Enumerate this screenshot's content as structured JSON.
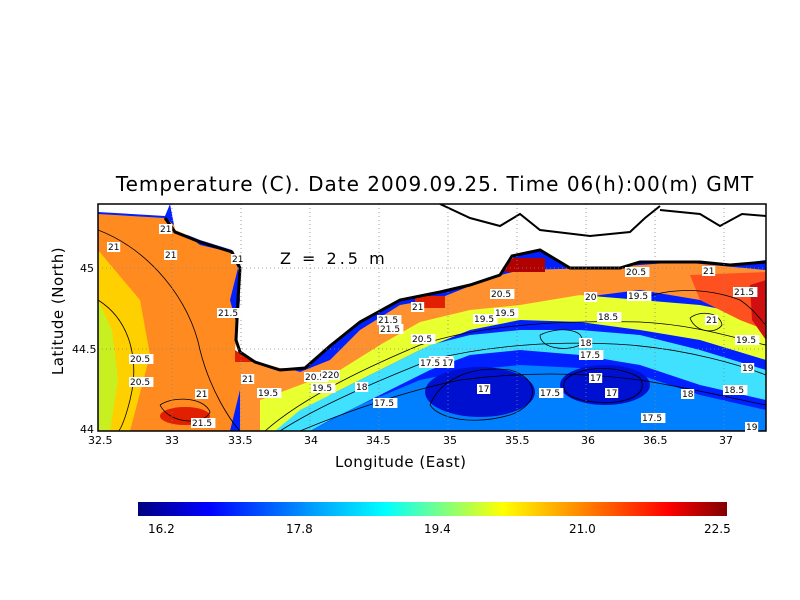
{
  "title": "Temperature (C). Date 2009.09.25. Time 06(h):00(m) GMT",
  "depth_label": "Z = 2.5 m",
  "xlabel": "Longitude (East)",
  "ylabel": "Latitude (North)",
  "x_ticks": [
    "32.5",
    "33",
    "33.5",
    "34",
    "34.5",
    "35",
    "35.5",
    "36",
    "36.5",
    "37"
  ],
  "y_ticks": [
    "45",
    "44.5",
    "44"
  ],
  "colorbar": {
    "ticks": [
      "16.2",
      "17.8",
      "19.4",
      "21.0",
      "22.5"
    ],
    "colors": [
      "#000080",
      "#0000ff",
      "#00a0ff",
      "#00ffff",
      "#80ff80",
      "#ffff00",
      "#ff8000",
      "#ff0000",
      "#800000"
    ]
  },
  "contour_labels": [
    "21",
    "21",
    "21",
    "21",
    "20.5",
    "20.5",
    "21.5",
    "21",
    "21",
    "21.5",
    "19.5",
    "20.5",
    "220",
    "19.5",
    "20.5",
    "21",
    "21.5",
    "21.5",
    "19.5",
    "20.5",
    "18.5",
    "18",
    "17.5",
    "17",
    "17",
    "17.5",
    "17.5",
    "17",
    "18",
    "17.5",
    "17",
    "18",
    "19.5",
    "18.5",
    "20",
    "20.5",
    "21",
    "21.5",
    "19.5",
    "21",
    "19.5",
    "19",
    "18.5",
    "17.5",
    "19"
  ]
}
